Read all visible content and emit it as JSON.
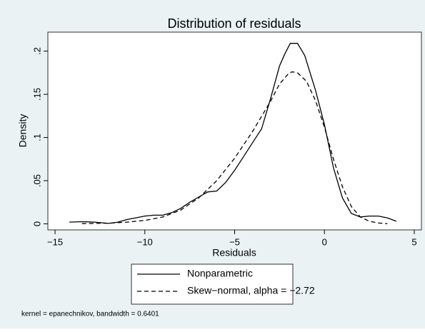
{
  "chart_data": {
    "type": "line",
    "title": "Distribution of residuals",
    "xlabel": "Residuals",
    "ylabel": "Density",
    "note": "kernel = epanechnikov, bandwidth = 0.6401",
    "xlim": [
      -15.4,
      5.4
    ],
    "ylim": [
      -0.007,
      0.222
    ],
    "xticks": [
      {
        "value": -15,
        "label": "−15"
      },
      {
        "value": -10,
        "label": "−10"
      },
      {
        "value": -5,
        "label": "−5"
      },
      0,
      5
    ],
    "yticks": [
      0,
      {
        "value": 0.05,
        "label": ".05"
      },
      {
        "value": 0.1,
        "label": ".1"
      },
      {
        "value": 0.15,
        "label": ".15"
      },
      {
        "value": 0.2,
        "label": ".2"
      }
    ],
    "legend": "bottom",
    "series": [
      {
        "name": "Nonparametric",
        "color": "#000000",
        "style": "solid",
        "x": [
          -14.2,
          -13.5,
          -12.8,
          -12,
          -11.5,
          -11,
          -10.5,
          -10,
          -9.5,
          -9,
          -8.5,
          -8,
          -7.5,
          -7,
          -6.5,
          -6,
          -5.5,
          -5,
          -4.5,
          -4,
          -3.5,
          -3,
          -2.5,
          -2.2,
          -1.9,
          -1.5,
          -1.1,
          -0.5,
          0,
          0.5,
          1,
          1.5,
          2,
          2.5,
          3,
          3.5,
          4
        ],
        "values": [
          0.002,
          0.0025,
          0.002,
          0.0005,
          0.002,
          0.005,
          0.007,
          0.009,
          0.01,
          0.01,
          0.013,
          0.018,
          0.025,
          0.031,
          0.037,
          0.038,
          0.048,
          0.062,
          0.078,
          0.094,
          0.11,
          0.145,
          0.183,
          0.197,
          0.209,
          0.209,
          0.195,
          0.155,
          0.115,
          0.065,
          0.03,
          0.012,
          0.008,
          0.009,
          0.009,
          0.007,
          0.003
        ]
      },
      {
        "name": "Skew−normal, alpha = −2.72",
        "color": "#000000",
        "style": "dashed",
        "x": [
          -13.5,
          -12,
          -11,
          -10,
          -9,
          -8,
          -7,
          -6,
          -5,
          -4,
          -3,
          -2.5,
          -2,
          -1.8,
          -1.5,
          -1,
          -0.5,
          0,
          0.5,
          1,
          1.5,
          2,
          2.5,
          3,
          3.5
        ],
        "values": [
          0.0003,
          0.0008,
          0.002,
          0.004,
          0.008,
          0.016,
          0.03,
          0.05,
          0.076,
          0.107,
          0.142,
          0.162,
          0.174,
          0.176,
          0.175,
          0.165,
          0.143,
          0.112,
          0.075,
          0.043,
          0.02,
          0.008,
          0.003,
          0.001,
          0.0002
        ]
      }
    ]
  }
}
